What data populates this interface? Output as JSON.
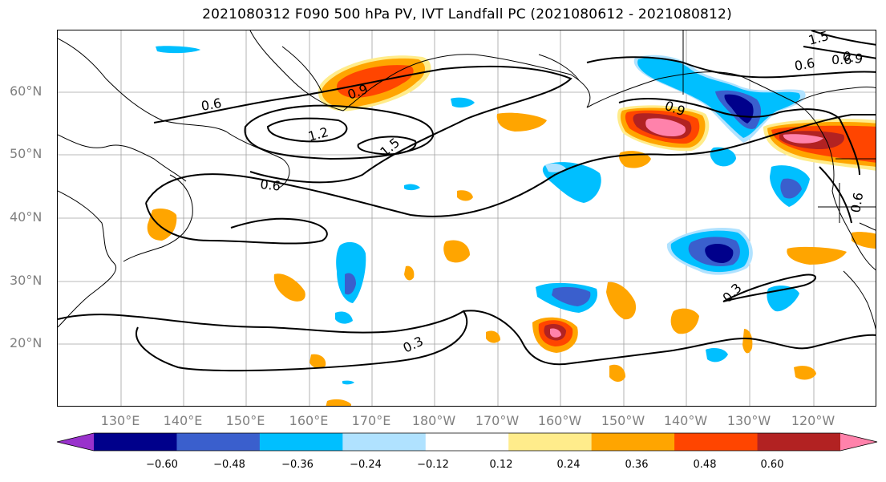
{
  "title": "2021080312 F090 500 hPa PV, IVT Landfall PC (2021080612 - 2021080812)",
  "lat_labels": [
    "60°N",
    "50°N",
    "40°N",
    "30°N",
    "20°N"
  ],
  "lon_labels": [
    "130°E",
    "140°E",
    "150°E",
    "160°E",
    "170°E",
    "180°W",
    "170°W",
    "160°W",
    "150°W",
    "140°W",
    "130°W",
    "120°W"
  ],
  "contour_labels": [
    "0.6",
    "0.9",
    "1.2",
    "1.5",
    "0.6",
    "0.9",
    "0.6",
    "1.5",
    "0.9",
    "0.6",
    "0.3",
    "0.3",
    "0.6"
  ],
  "colorbar": {
    "colors": [
      "#9932CC",
      "#00008B",
      "#3A5FCD",
      "#00BFFF",
      "#B0E2FF",
      "#FFFFFF",
      "#FFEC8B",
      "#FFA500",
      "#FF4500",
      "#B22222",
      "#FF82AB"
    ],
    "tick_labels": [
      "−0.60",
      "−0.48",
      "−0.36",
      "−0.24",
      "−0.12",
      "0.12",
      "0.24",
      "0.36",
      "0.48",
      "0.60"
    ]
  },
  "colors": {
    "grid": "#A0A0A0",
    "coast": "#000000",
    "contour": "#000000",
    "axis_label": "#808080"
  }
}
